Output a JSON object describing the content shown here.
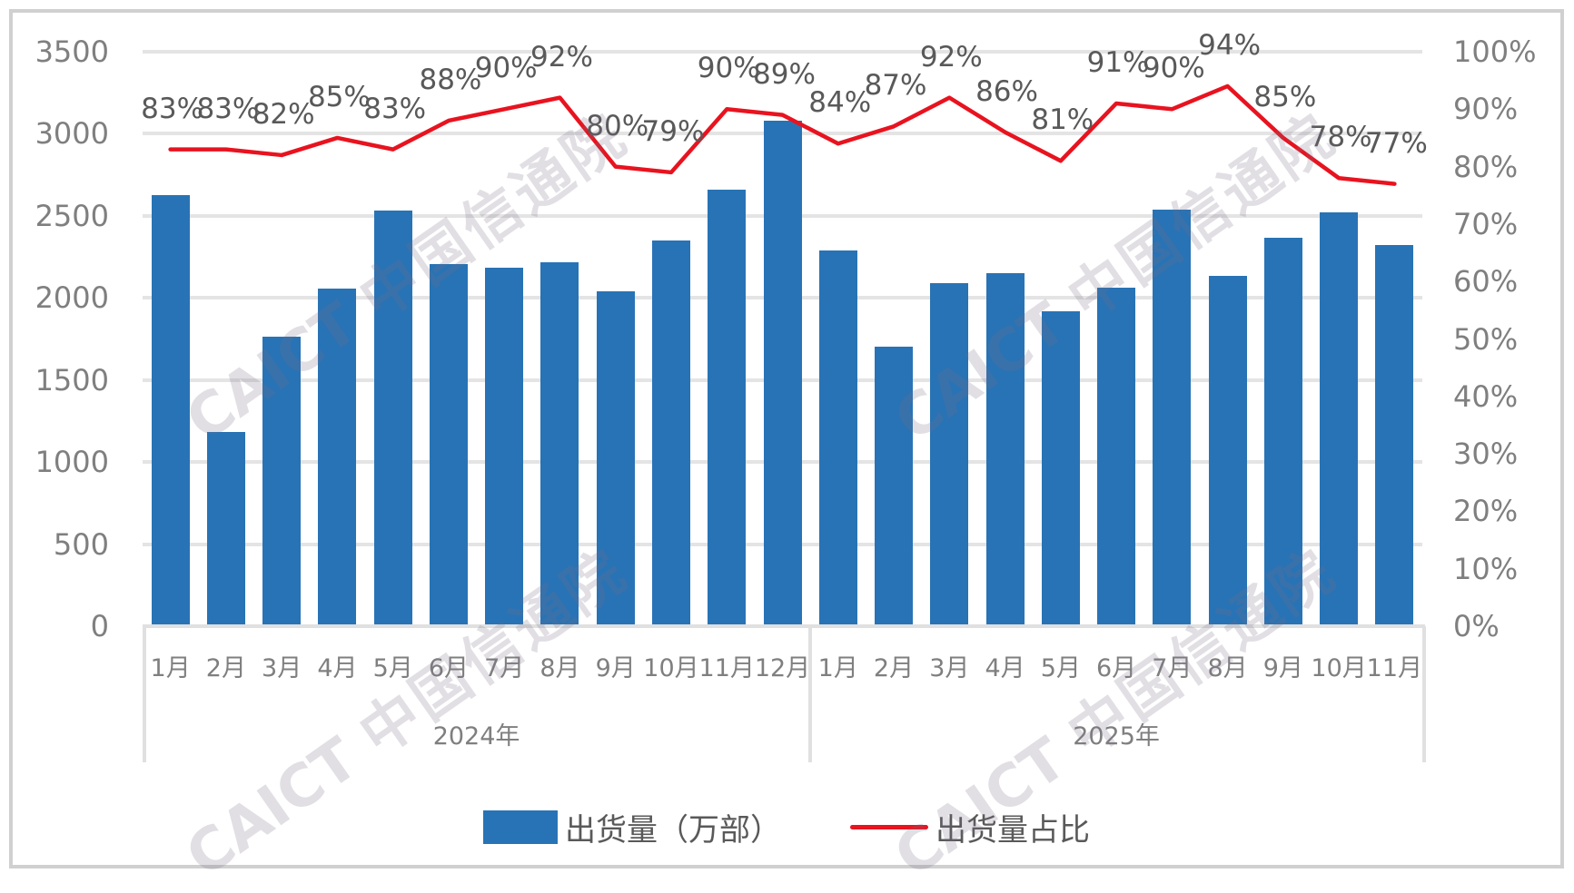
{
  "chart_data": {
    "type": "bar+line",
    "title": "",
    "categories": [
      "1月",
      "2月",
      "3月",
      "4月",
      "5月",
      "6月",
      "7月",
      "8月",
      "9月",
      "10月",
      "11月",
      "12月",
      "1月",
      "2月",
      "3月",
      "4月",
      "5月",
      "6月",
      "7月",
      "8月",
      "9月",
      "10月",
      "11月"
    ],
    "groups": [
      {
        "label": "2024年",
        "start": 0,
        "count": 12
      },
      {
        "label": "2025年",
        "start": 12,
        "count": 11
      }
    ],
    "series": [
      {
        "name": "出货量（万部）",
        "type": "bar",
        "axis": "left",
        "color": "#2873b5",
        "values": [
          2628,
          1184,
          1765,
          2058,
          2533,
          2207,
          2184,
          2216,
          2040,
          2349,
          2658,
          3081,
          2288,
          1702,
          2091,
          2151,
          1919,
          2063,
          2537,
          2135,
          2367,
          2523,
          2323
        ]
      },
      {
        "name": "出货量占比",
        "type": "line",
        "axis": "right",
        "color": "#e8131f",
        "values": [
          83,
          83,
          82,
          85,
          83,
          88,
          90,
          92,
          80,
          79,
          90,
          89,
          84,
          87,
          92,
          86,
          81,
          91,
          90,
          94,
          85,
          78,
          77
        ],
        "labels": [
          "83%",
          "83%",
          "82%",
          "85%",
          "83%",
          "88%",
          "90%",
          "92%",
          "80%",
          "79%",
          "90%",
          "89%",
          "84%",
          "87%",
          "92%",
          "86%",
          "81%",
          "91%",
          "90%",
          "94%",
          "85%",
          "78%",
          "77%"
        ]
      }
    ],
    "y_left": {
      "ticks": [
        "0",
        "500",
        "1000",
        "1500",
        "2000",
        "2500",
        "3000",
        "3500"
      ],
      "min": 0,
      "max": 3500
    },
    "y_right": {
      "ticks": [
        "0%",
        "10%",
        "20%",
        "30%",
        "40%",
        "50%",
        "60%",
        "70%",
        "80%",
        "90%",
        "100%"
      ],
      "min": 0,
      "max": 100
    },
    "xlabel": "",
    "ylabel": "",
    "grid": true,
    "legend_position": "bottom"
  },
  "legend": {
    "bar_label": "出货量（万部）",
    "line_label": "出货量占比"
  },
  "watermark": {
    "latin": "CAICT",
    "chinese": "中国信通院"
  }
}
